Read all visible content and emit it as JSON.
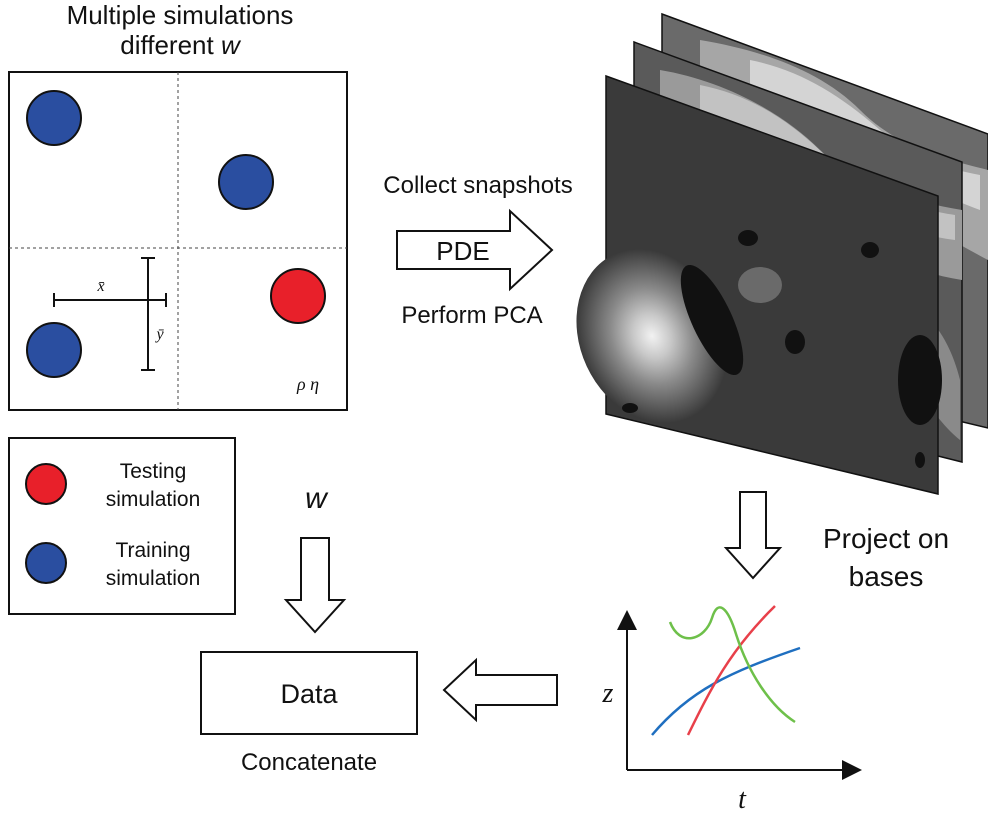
{
  "title": {
    "line1": "Multiple simulations",
    "line2_prefix": "different ",
    "line2_var": "w"
  },
  "domain_box": {
    "xbar": "x̄",
    "ybar": "ȳ",
    "rho_eta": "ρ η"
  },
  "legend": {
    "testing_line1": "Testing",
    "testing_line2": "simulation",
    "training_line1": "Training",
    "training_line2": "simulation"
  },
  "flow": {
    "collect_snapshots": "Collect snapshots",
    "pde": "PDE",
    "perform_pca": "Perform PCA",
    "project_line1": "Project on",
    "project_line2": "bases",
    "w_input": "w",
    "data": "Data",
    "concatenate": "Concatenate"
  },
  "plot": {
    "y_label": "z",
    "x_label": "t"
  },
  "colors": {
    "training_circle": "#2a4ea0",
    "testing_circle": "#e8202a",
    "curve_blue": "#1f6fc0",
    "curve_red": "#e8404a",
    "curve_green": "#6ec04a"
  }
}
